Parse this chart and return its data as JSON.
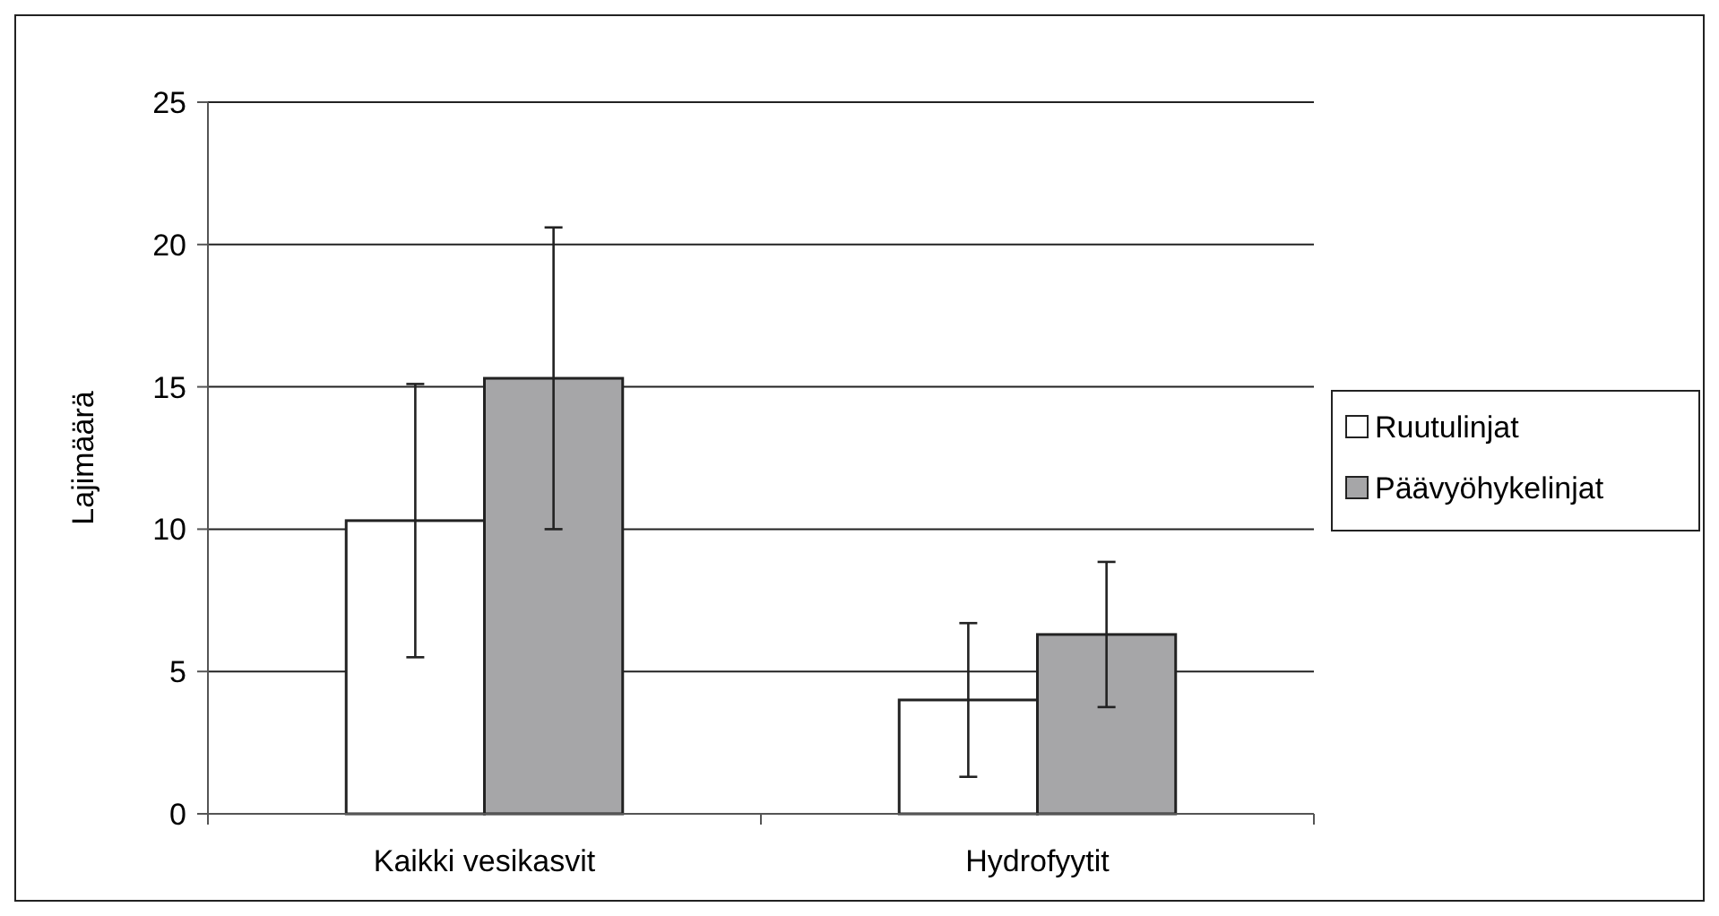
{
  "chart_data": {
    "type": "bar",
    "ylabel": "Lajimäärä",
    "categories": [
      "Kaikki vesikasvit",
      "Hydrofyytit"
    ],
    "series": [
      {
        "name": "Ruutulinjat",
        "color": "#ffffff",
        "values": [
          10.3,
          4.0
        ],
        "errors": [
          4.8,
          2.7
        ]
      },
      {
        "name": "Päävyöhykelinjat",
        "color": "#a6a6a8",
        "values": [
          15.3,
          6.3
        ],
        "errors": [
          5.3,
          2.55
        ]
      }
    ],
    "ylim": [
      0,
      25
    ],
    "yticks": [
      0,
      5,
      10,
      15,
      20,
      25
    ],
    "grid": "y",
    "legend": "right"
  }
}
